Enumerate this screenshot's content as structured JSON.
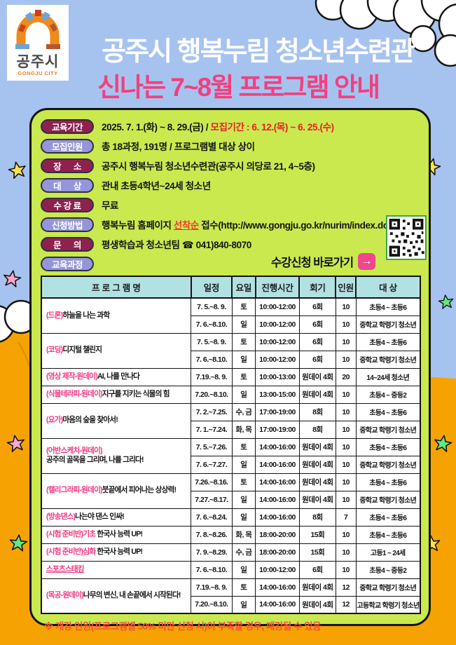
{
  "header": {
    "logo_name": "공주시",
    "logo_sub": "GONGJU CITY",
    "title_line1": "공주시 행복누림 청소년수련관",
    "title_line2": "신나는 7~8월 프로그램 안내"
  },
  "info": {
    "rows": [
      {
        "badge": "교육기간",
        "badge_style": "maroon",
        "segments": [
          {
            "text": "2025. 7. 1.(화) ~ 8. 29.(금) / "
          },
          {
            "text": "모집기간 : 6. 12.(목) ~ 6. 25.(수)",
            "style": "red"
          }
        ]
      },
      {
        "badge": "모집인원",
        "badge_style": "purple",
        "segments": [
          {
            "text": "총 18과정, 191명 / 프로그램별 대상 상이"
          }
        ]
      },
      {
        "badge": "장      소",
        "badge_style": "maroon",
        "segments": [
          {
            "text": "공주시 행복누림 청소년수련관(공주시 의당로 21, 4~5층)"
          }
        ]
      },
      {
        "badge": "대      상",
        "badge_style": "purple",
        "segments": [
          {
            "text": "관내 초등4학년~24세 청소년"
          }
        ]
      },
      {
        "badge": "수 강 료",
        "badge_style": "maroon",
        "segments": [
          {
            "text": "무료"
          }
        ]
      },
      {
        "badge": "신청방법",
        "badge_style": "purple",
        "segments": [
          {
            "text": "행복누림 홈페이지 "
          },
          {
            "text": "선착순",
            "style": "red-underline"
          },
          {
            "text": " 접수(http://www.gongju.go.kr/nurim/index.do)"
          }
        ]
      },
      {
        "badge": "문      의",
        "badge_style": "maroon",
        "segments": [
          {
            "text": "평생학습과 청소년팀 ☎ 041)840-8070"
          }
        ]
      },
      {
        "badge": "교육과정",
        "badge_style": "purple",
        "segments": []
      }
    ]
  },
  "cta": {
    "label": "수강신청 바로가기",
    "arrow": "→",
    "qr": "qr-code"
  },
  "table": {
    "headers": [
      "프 로 그 램 명",
      "일정",
      "요일",
      "진행시간",
      "회기",
      "인원",
      "대 상"
    ],
    "programs": [
      {
        "name_pink": "(드론)",
        "name_black": "하늘을 나는 과학",
        "rows": [
          [
            "7. 5.~8. 9.",
            "토",
            "10:00-12:00",
            "6회",
            "10",
            "초등4 ~ 초등6"
          ],
          [
            "7. 6.~8.10.",
            "일",
            "10:00-12:00",
            "6회",
            "10",
            "중학교 학령기 청소년"
          ]
        ]
      },
      {
        "name_pink": "(코딩)",
        "name_black": "디지털 챌린지",
        "rows": [
          [
            "7. 5.~8. 9.",
            "토",
            "10:00-12:00",
            "6회",
            "10",
            "초등4 ~ 초등6"
          ],
          [
            "7. 6.~8.10.",
            "일",
            "10:00-12:00",
            "6회",
            "10",
            "중학교 학령기 청소년"
          ]
        ]
      },
      {
        "name_pink": "(영상  제작-원데이)",
        "name_black": "AI, 나를 만나다",
        "rows": [
          [
            "7.19.~8. 9.",
            "토",
            "10:00-13:00",
            "원데이 4회",
            "20",
            "14~24세 청소년"
          ]
        ]
      },
      {
        "name_pink": "(식물테라피-원데이)",
        "name_black": "지구를 지키는 식물의 힘",
        "rows": [
          [
            "7.20.~8.10.",
            "일",
            "13:00-15:00",
            "원데이 4회",
            "10",
            "초등4 ~ 중등2"
          ]
        ]
      },
      {
        "name_pink": "(요가)",
        "name_black": "마음의 숲을 찾아서!",
        "rows": [
          [
            "7. 2.~7.25.",
            "수, 금",
            "17:00-19:00",
            "8회",
            "10",
            "초등4 ~ 초등6"
          ],
          [
            "7. 1.~7.24.",
            "화, 목",
            "17:00-19:00",
            "8회",
            "10",
            "중학교 학령기 청소년"
          ]
        ]
      },
      {
        "name_pink": "(어반스케치-원데이)",
        "name_black": "공주의 골목을 그리며, 나를 그리다!",
        "two_line": true,
        "rows": [
          [
            "7. 5.~7.26.",
            "토",
            "14:00-16:00",
            "원데이 4회",
            "10",
            "초등4 ~ 초등6"
          ],
          [
            "7. 6.~7.27.",
            "일",
            "14:00-16:00",
            "원데이 4회",
            "10",
            "중학교 학령기 청소년"
          ]
        ]
      },
      {
        "name_pink": "(캘리그라피-원데이)",
        "name_black": "붓끝에서 피어나는 상상력!",
        "rows": [
          [
            "7.26.~8.16.",
            "토",
            "14:00-16:00",
            "원데이 4회",
            "10",
            "초등4 ~ 초등6"
          ],
          [
            "7.27.~8.17.",
            "일",
            "14:00-16:00",
            "원데이 4회",
            "10",
            "중학교 학령기 청소년"
          ]
        ]
      },
      {
        "name_pink": "(방송댄스)",
        "name_black": "나는야 댄스 인싸!",
        "rows": [
          [
            "7. 6.~8.24.",
            "일",
            "14:00-16:00",
            "8회",
            "7",
            "초등4 ~ 초등6"
          ]
        ]
      },
      {
        "name_pink": "(시험 준비반)기초",
        "name_black": " 한국사 능력 UP!",
        "rows": [
          [
            "7. 8.~8.26.",
            "화, 목",
            "18:00-20:00",
            "15회",
            "10",
            "초등4 ~ 초등6"
          ]
        ]
      },
      {
        "name_pink": "(시험 준비반)심화",
        "name_black": " 한국사 능력 UP!",
        "rows": [
          [
            "7. 9.~8.29.",
            "수, 금",
            "18:00-20:00",
            "15회",
            "10",
            "고등1 ~ 24세"
          ]
        ]
      },
      {
        "name_pink": "스포츠스태킹",
        "name_black": "",
        "underline": true,
        "rows": [
          [
            "7. 6.~8.10.",
            "일",
            "10:00-12:00",
            "6회",
            "10",
            "초등4 ~ 중등2"
          ]
        ]
      },
      {
        "name_pink": "(목공-원데이)",
        "name_black": "나무의 변신, 내 손끝에서 시작된다!",
        "rows": [
          [
            "7.19.~8. 9.",
            "토",
            "14:00-16:00",
            "원데이 4회",
            "12",
            "중학교 학령기 청소년"
          ],
          [
            "7.20.~8.10.",
            "일",
            "14:00-16:00",
            "원데이 4회",
            "12",
            "고등학교 학령기 청소년"
          ]
        ]
      }
    ]
  },
  "footnote": "※ 개강 인원(프로그램별 50% 미만 신청 시)이 부족할 경우, 폐강될 수 있음",
  "colors": {
    "sky": "#a6c3f0",
    "ground_orange": "#f6a301",
    "panel_green": "#c9e94f",
    "badge_maroon": "#8e2150",
    "badge_purple": "#9595dc",
    "title_pink": "#f2407f",
    "accent_pink": "#f4357e",
    "alert_red": "#ee1c24",
    "table_header": "#b2e1e3",
    "footnote_red": "#f4503c",
    "cta_button_pink": "#f0478c"
  }
}
